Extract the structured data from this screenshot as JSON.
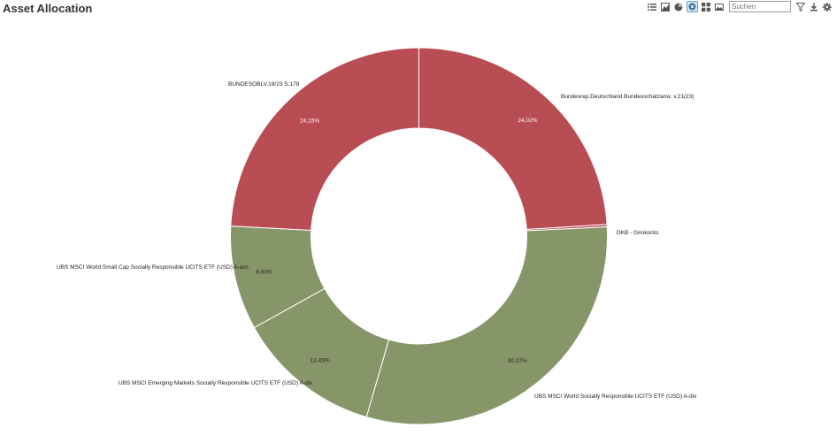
{
  "header": {
    "title": "Asset Allocation",
    "search_placeholder": "Suchen",
    "toolbar_icons": [
      "list-icon",
      "area-chart-icon",
      "pie-chart-icon",
      "donut-chart-icon",
      "grid-icon",
      "landscape-icon",
      "filter-icon",
      "download-icon",
      "settings-icon"
    ]
  },
  "chart_data": {
    "type": "pie",
    "variant": "donut",
    "slices": [
      {
        "name": "Bundesrep.Deutschland Bundesschatzanw. v.21(23)",
        "value": 24.02,
        "label": "24,02%",
        "color": "#b94d54"
      },
      {
        "name": "DKB - Girokonto",
        "value": 0.2,
        "label": "",
        "color": "#b94d54"
      },
      {
        "name": "UBS MSCI World Socially Responsible UCITS ETF (USD) A-dis",
        "value": 30.27,
        "label": "30,27%",
        "color": "#879669"
      },
      {
        "name": "UBS MSCI Emerging Markets Socially Responsible UCITS ETF (USD) A-dis",
        "value": 12.43,
        "label": "12,43%",
        "color": "#879669"
      },
      {
        "name": "UBS MSCI World Small Cap Socially Responsible UCITS ETF (USD) A-acc",
        "value": 8.93,
        "label": "8,93%",
        "color": "#879669"
      },
      {
        "name": "BUNDESOBLV.18/23 S.178",
        "value": 24.15,
        "label": "24,15%",
        "color": "#b94d54"
      }
    ]
  }
}
